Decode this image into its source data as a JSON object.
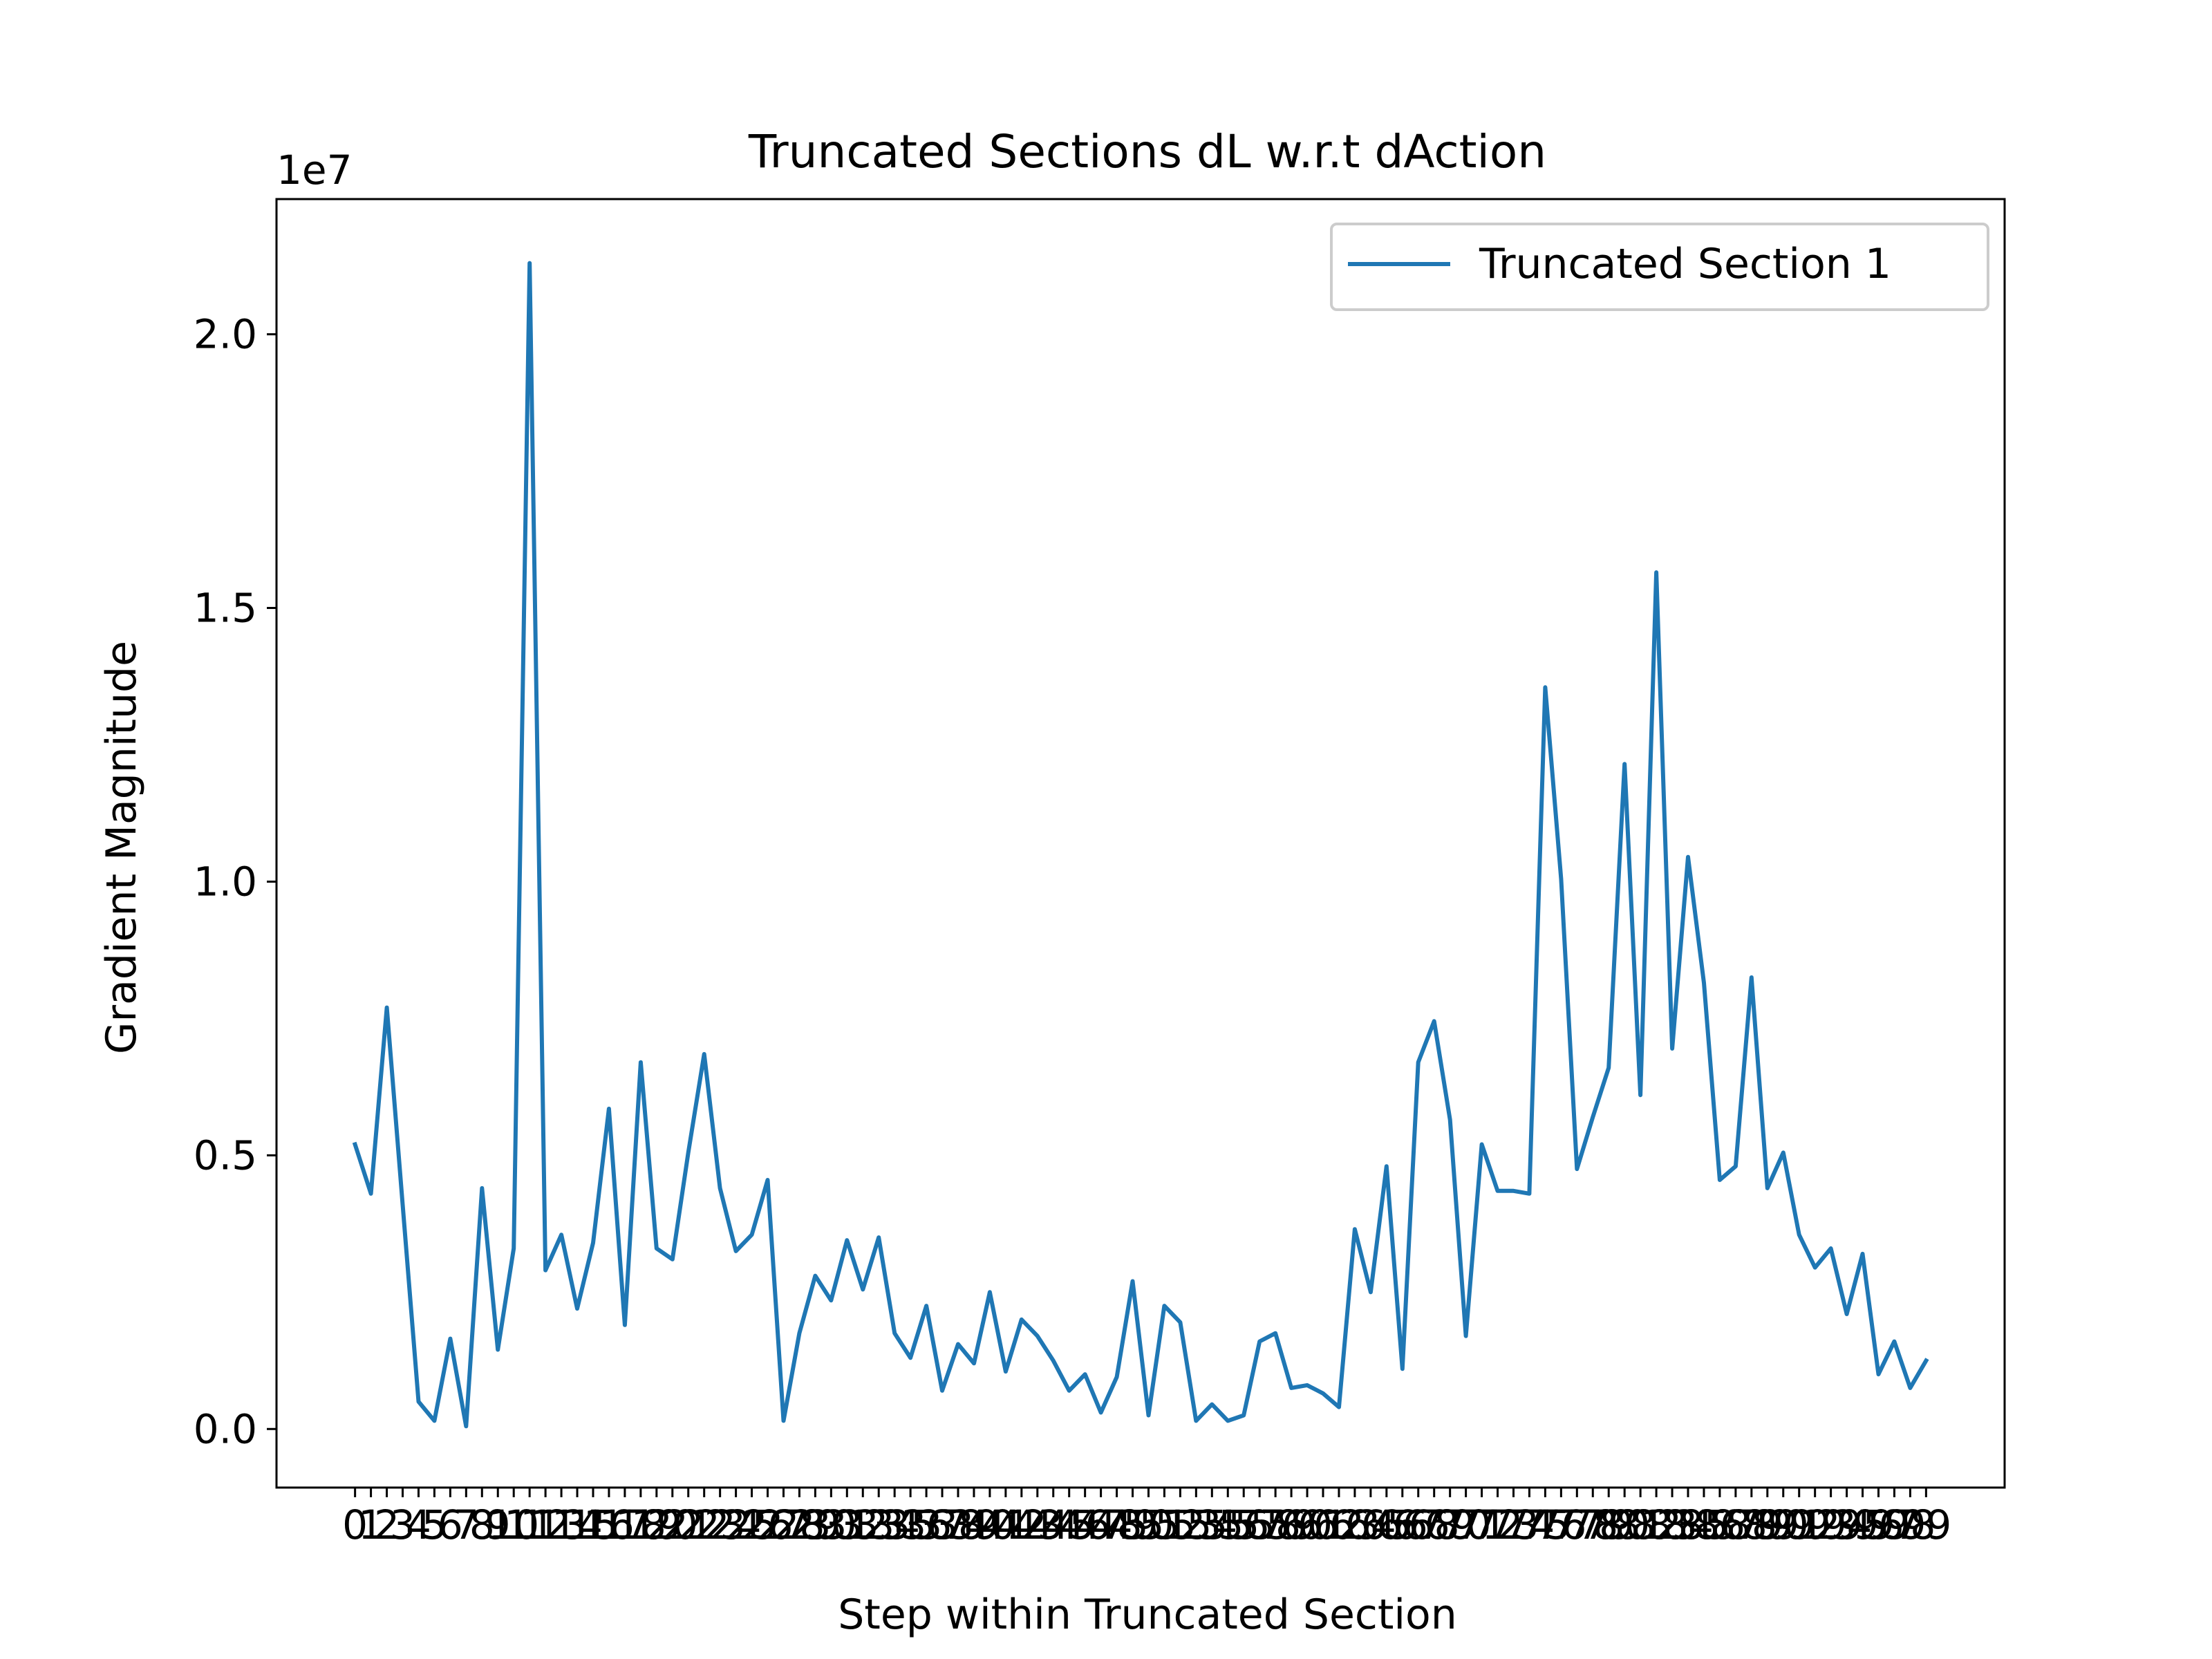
{
  "chart_data": {
    "type": "line",
    "title": "Truncated Sections dL w.r.t dAction",
    "xlabel": "Step within Truncated Section",
    "ylabel": "Gradient Magnitude",
    "y_offset_text": "1e7",
    "y_scale": 10000000,
    "xlim": [
      -4.95,
      103.95
    ],
    "ylim": [
      -1070000,
      22470000
    ],
    "yticks": [
      0,
      5000000,
      10000000,
      15000000,
      20000000
    ],
    "ytick_labels": [
      "0.0",
      "0.5",
      "1.0",
      "1.5",
      "2.0"
    ],
    "xticks": [
      0,
      1,
      2,
      3,
      4,
      5,
      6,
      7,
      8,
      9,
      10,
      11,
      12,
      13,
      14,
      15,
      16,
      17,
      18,
      19,
      20,
      21,
      22,
      23,
      24,
      25,
      26,
      27,
      28,
      29,
      30,
      31,
      32,
      33,
      34,
      35,
      36,
      37,
      38,
      39,
      40,
      41,
      42,
      43,
      44,
      45,
      46,
      47,
      48,
      49,
      50,
      51,
      52,
      53,
      54,
      55,
      56,
      57,
      58,
      59,
      60,
      61,
      62,
      63,
      64,
      65,
      66,
      67,
      68,
      69,
      70,
      71,
      72,
      73,
      74,
      75,
      76,
      77,
      78,
      79,
      80,
      81,
      82,
      83,
      84,
      85,
      86,
      87,
      88,
      89,
      90,
      91,
      92,
      93,
      94,
      95,
      96,
      97,
      98,
      99
    ],
    "grid": false,
    "legend_position": "upper right",
    "series": [
      {
        "name": "Truncated Section 1",
        "color": "#1f77b4",
        "x": [
          0,
          1,
          2,
          3,
          4,
          5,
          6,
          7,
          8,
          9,
          10,
          11,
          12,
          13,
          14,
          15,
          16,
          17,
          18,
          19,
          20,
          21,
          22,
          23,
          24,
          25,
          26,
          27,
          28,
          29,
          30,
          31,
          32,
          33,
          34,
          35,
          36,
          37,
          38,
          39,
          40,
          41,
          42,
          43,
          44,
          45,
          46,
          47,
          48,
          49,
          50,
          51,
          52,
          53,
          54,
          55,
          56,
          57,
          58,
          59,
          60,
          61,
          62,
          63,
          64,
          65,
          66,
          67,
          68,
          69,
          70,
          71,
          72,
          73,
          74,
          75,
          76,
          77,
          78,
          79,
          80,
          81,
          82,
          83,
          84,
          85,
          86,
          87,
          88,
          89,
          90,
          91,
          92,
          93,
          94,
          95,
          96,
          97,
          98,
          99
        ],
        "values": [
          5200000,
          4300000,
          7700000,
          4100000,
          500000,
          150000,
          1650000,
          50000,
          4400000,
          1450000,
          3300000,
          21300000,
          2900000,
          3550000,
          2200000,
          3400000,
          5850000,
          1900000,
          6700000,
          3300000,
          3100000,
          5050000,
          6850000,
          4400000,
          3250000,
          3550000,
          4550000,
          150000,
          1750000,
          2800000,
          2350000,
          3450000,
          2550000,
          3500000,
          1750000,
          1300000,
          2250000,
          700000,
          1550000,
          1200000,
          2500000,
          1050000,
          2000000,
          1700000,
          1250000,
          700000,
          1000000,
          300000,
          950000,
          2700000,
          250000,
          2250000,
          1950000,
          150000,
          450000,
          150000,
          250000,
          1600000,
          1750000,
          750000,
          800000,
          650000,
          400000,
          3650000,
          2500000,
          4800000,
          1100000,
          6700000,
          7450000,
          5650000,
          1700000,
          5200000,
          4350000,
          4350000,
          4300000,
          13550000,
          10050000,
          4750000,
          5700000,
          6600000,
          12150000,
          6100000,
          15650000,
          6950000,
          10450000,
          8150000,
          4550000,
          4800000,
          8250000,
          4400000,
          5050000,
          3550000,
          2950000,
          3300000,
          2100000,
          3200000,
          1000000,
          1600000,
          750000,
          1250000
        ]
      }
    ]
  }
}
